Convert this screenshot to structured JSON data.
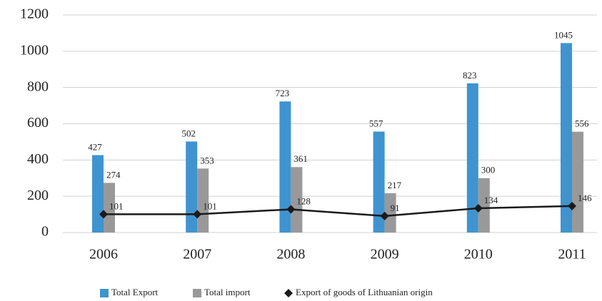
{
  "chart_data": {
    "type": "bar",
    "categories": [
      "2006",
      "2007",
      "2008",
      "2009",
      "2010",
      "2011"
    ],
    "series": [
      {
        "name": "Total Export",
        "color": "#3f94cf",
        "values": [
          427,
          502,
          723,
          557,
          823,
          1045
        ]
      },
      {
        "name": "Total import",
        "color": "#999999",
        "values": [
          274,
          353,
          361,
          217,
          300,
          556
        ]
      },
      {
        "name": "Export of goods of Lithuanian origin",
        "color": "#1a1a1a",
        "type": "line",
        "values": [
          101,
          101,
          128,
          91,
          134,
          146
        ]
      }
    ],
    "ylim": [
      0,
      1200
    ],
    "yticks": [
      0,
      200,
      400,
      600,
      800,
      1000,
      1200
    ],
    "grid": true,
    "legend": "bottom"
  }
}
